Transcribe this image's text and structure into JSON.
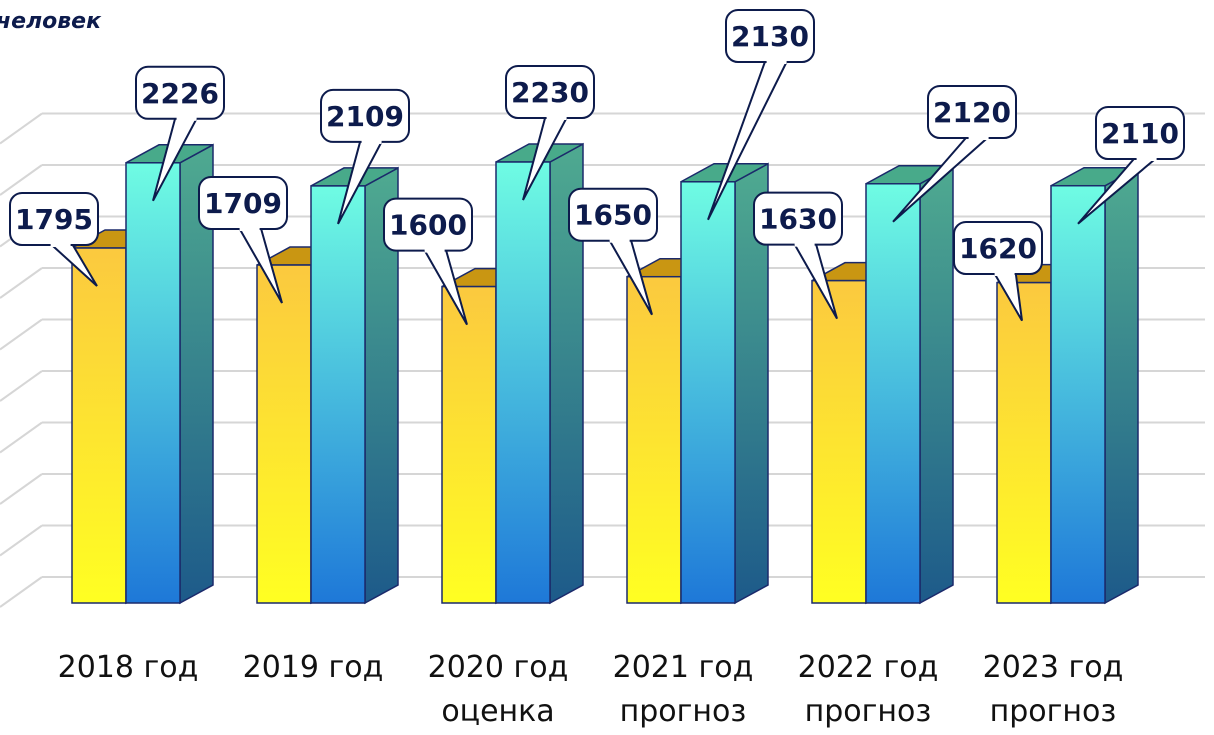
{
  "chart_data": {
    "type": "bar",
    "unit_label": "человек",
    "categories": [
      [
        "2018 год"
      ],
      [
        "2019 год"
      ],
      [
        "2020 год",
        "оценка"
      ],
      [
        "2021 год",
        "прогноз"
      ],
      [
        "2022 год",
        "прогноз"
      ],
      [
        "2023 год",
        "прогноз"
      ]
    ],
    "series": [
      {
        "values": [
          1795,
          1709,
          1600,
          1650,
          1630,
          1620
        ],
        "color": "#f5c518"
      },
      {
        "values": [
          2226,
          2109,
          2230,
          2130,
          2120,
          2110
        ],
        "color": "#2aa8a0"
      }
    ],
    "ylim": [
      0,
      2400
    ],
    "grid": true,
    "legend": "none"
  }
}
